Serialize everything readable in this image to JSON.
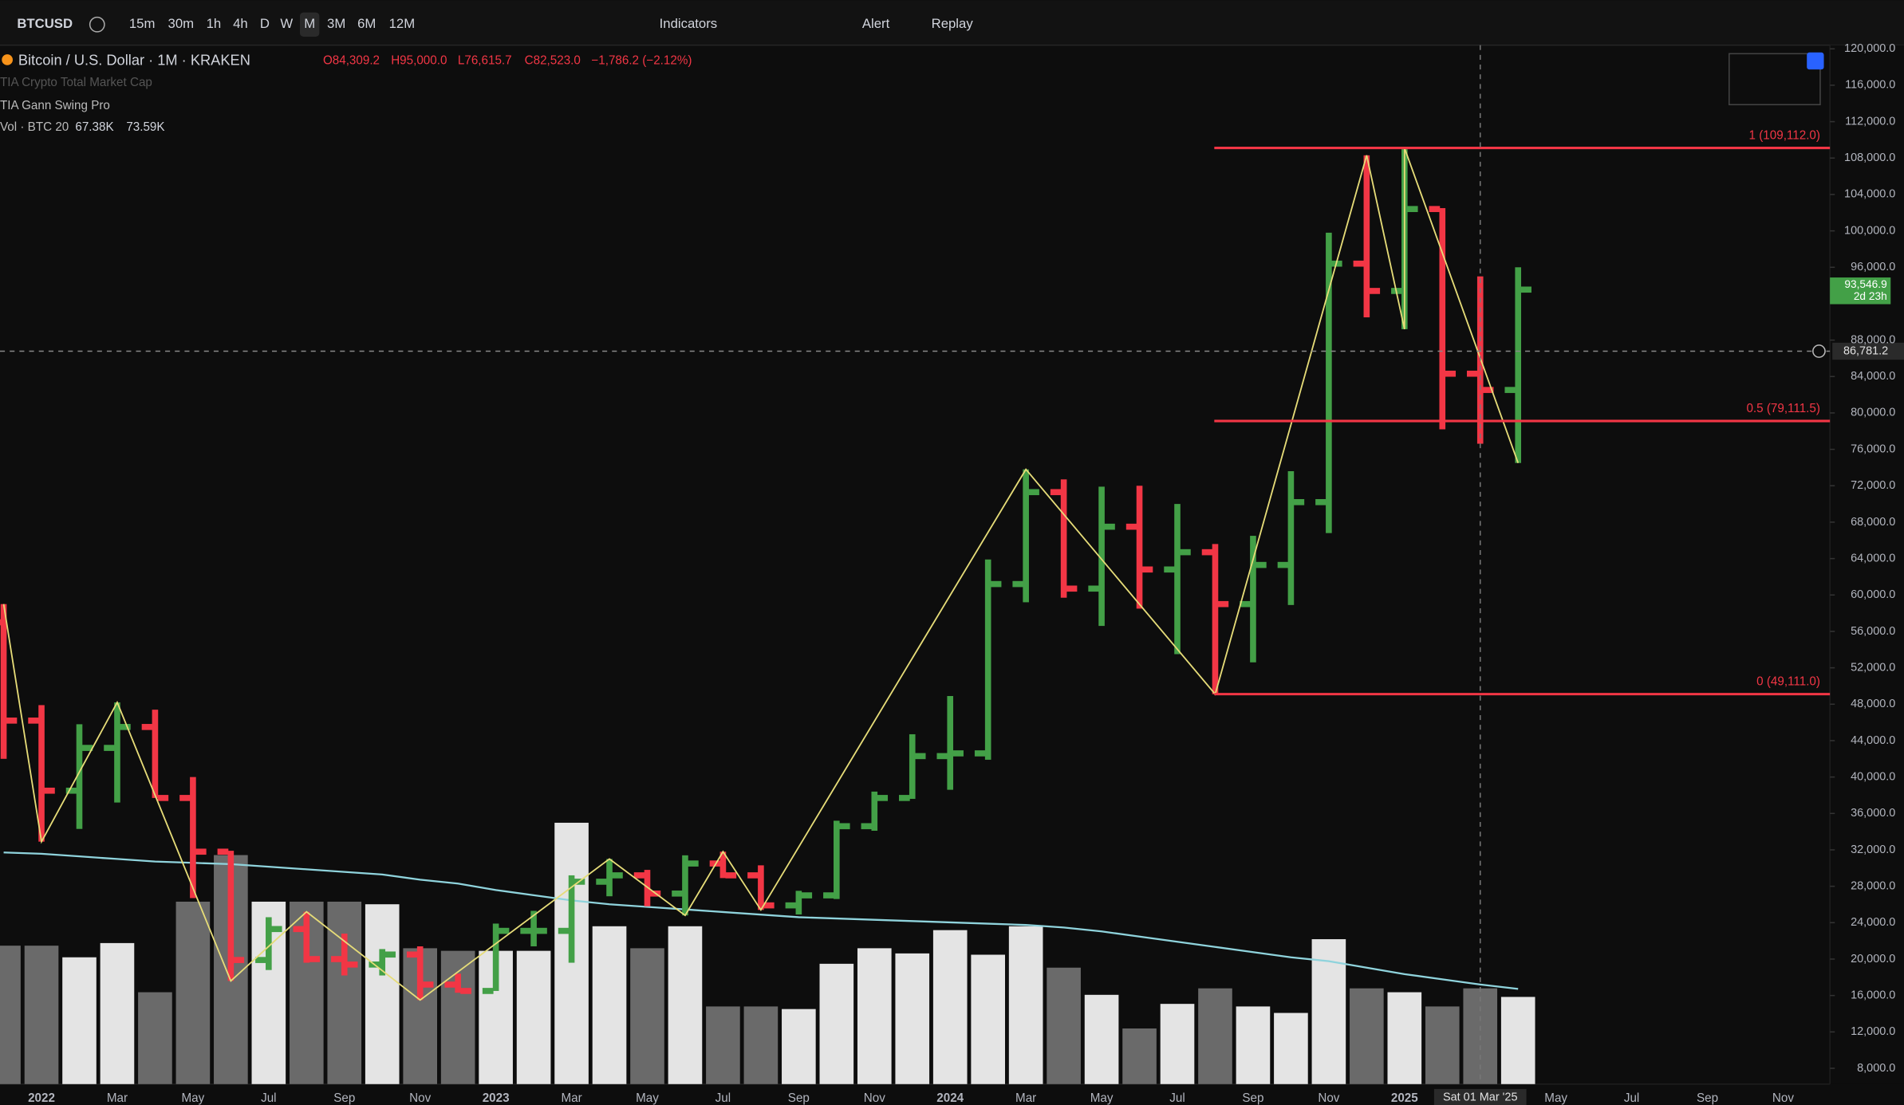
{
  "toolbar": {
    "symbol": "BTCUSD",
    "intervals": [
      "15m",
      "30m",
      "1h",
      "4h",
      "D",
      "W",
      "M",
      "3M",
      "6M",
      "12M"
    ],
    "active_interval": 6,
    "indicators": "Indicators",
    "alert": "Alert",
    "replay": "Replay"
  },
  "legend": {
    "title": "Bitcoin / U.S. Dollar · 1M · KRAKEN",
    "ohlc": [
      "O84,309.2",
      "H95,000.0",
      "L76,615.7",
      "C82,523.0",
      "−1,786.2 (−2.12%)"
    ],
    "indicator1": "TIA Crypto Total Market Cap",
    "indicator2": "TIA Gann Swing Pro",
    "volume_name": "Vol · BTC 20",
    "volume_values": [
      "67.38K",
      "73.59K"
    ]
  },
  "chart_data": {
    "type": "ohlc",
    "categories": [
      null,
      "2022",
      null,
      "Mar",
      null,
      "May",
      null,
      "Jul",
      null,
      "Sep",
      null,
      "Nov",
      null,
      "2023",
      null,
      "Mar",
      null,
      "May",
      null,
      "Jul",
      null,
      "Sep",
      null,
      "Nov",
      null,
      "2024",
      null,
      "Mar",
      null,
      "May",
      null,
      "Jul",
      null,
      "Sep",
      null,
      "Nov",
      null,
      "2025",
      null,
      null,
      null,
      "May",
      null,
      "Jul",
      null,
      "Sep",
      null,
      "Nov"
    ],
    "open": [
      57000,
      46200,
      38500,
      43200,
      45500,
      37700,
      31800,
      19900,
      23300,
      20000,
      19400,
      20500,
      17200,
      16500,
      23100,
      23100,
      28500,
      29200,
      27200,
      30500,
      29200,
      25900,
      27000,
      34600,
      37700,
      42300,
      42600,
      61200,
      71300,
      60700,
      67500,
      62800,
      64700,
      59000,
      63300,
      70200,
      96400,
      93400,
      102400,
      84309.2,
      82523.0,
      null,
      null,
      null,
      null,
      null,
      null,
      null
    ],
    "high": [
      59000,
      47900,
      45800,
      48200,
      47400,
      40000,
      31900,
      24600,
      25200,
      22800,
      21100,
      21400,
      18400,
      23900,
      25300,
      29200,
      31000,
      29800,
      31400,
      31800,
      30300,
      27500,
      35200,
      38400,
      44700,
      48900,
      63900,
      73800,
      72700,
      71900,
      72000,
      70000,
      65600,
      66500,
      73600,
      99800,
      108300,
      109100,
      102500,
      95000.0,
      96000,
      null,
      null,
      null,
      null,
      null,
      null,
      null
    ],
    "low": [
      42000,
      32900,
      34300,
      37200,
      37700,
      26700,
      17600,
      18800,
      19600,
      18200,
      18200,
      15500,
      16300,
      16500,
      21400,
      19600,
      26900,
      25800,
      24800,
      28900,
      25400,
      24900,
      26600,
      34100,
      37600,
      38600,
      41900,
      59200,
      59700,
      56600,
      58500,
      53500,
      49100,
      52600,
      58900,
      66800,
      90500,
      89200,
      78200,
      76615.7,
      74500,
      null,
      null,
      null,
      null,
      null,
      null,
      null
    ],
    "close": [
      46200,
      38500,
      43200,
      45500,
      37700,
      31800,
      19900,
      23300,
      20000,
      19400,
      20500,
      17200,
      16500,
      23100,
      23100,
      28500,
      29200,
      27200,
      30500,
      29200,
      25900,
      27000,
      34600,
      37700,
      42300,
      42600,
      61200,
      71300,
      60700,
      67500,
      62800,
      64700,
      59000,
      63300,
      70200,
      96400,
      93400,
      102400,
      84309.2,
      82523.0,
      93546.9,
      null,
      null,
      null,
      null,
      null,
      null,
      null
    ],
    "up_color": "#43a047",
    "down_color": "#f23645",
    "volume": {
      "values": [
        107,
        107,
        98,
        109,
        71,
        141,
        177,
        141,
        141,
        141,
        139,
        105,
        103,
        103,
        103,
        202,
        122,
        105,
        122,
        60,
        60,
        58,
        93,
        105,
        101,
        119,
        100,
        122,
        90,
        69,
        43,
        62,
        74,
        60,
        55,
        112,
        74,
        71,
        60,
        74,
        67.38,
        null,
        null,
        null,
        null,
        null,
        null,
        null
      ],
      "ma": {
        "values": [
          179,
          178,
          176,
          174,
          172,
          171,
          170,
          168,
          166,
          164,
          162,
          158,
          155,
          150,
          146,
          142,
          139,
          137,
          135,
          133,
          131,
          129,
          128,
          127,
          126,
          125,
          124,
          123,
          121,
          118,
          114,
          110,
          106,
          102,
          98,
          95,
          90,
          85,
          81,
          77,
          73.59,
          null,
          null,
          null,
          null,
          null,
          null,
          null
        ],
        "color": "#8fd3dc"
      },
      "up_color": "#e4e4e4",
      "down_color": "#6a6a6a"
    },
    "y2lim": [
      0,
      803
    ],
    "ylim": [
      6267,
      120400
    ],
    "yticks": [
      {
        "value": 120000,
        "label": "120,000.0"
      },
      {
        "value": 116000,
        "label": "116,000.0"
      },
      {
        "value": 112000,
        "label": "112,000.0"
      },
      {
        "value": 108000,
        "label": "108,000.0"
      },
      {
        "value": 104000,
        "label": "104,000.0"
      },
      {
        "value": 100000,
        "label": "100,000.0"
      },
      {
        "value": 96000,
        "label": "96,000.0"
      },
      {
        "value": 88000,
        "label": "88,000.0"
      },
      {
        "value": 84000,
        "label": "84,000.0"
      },
      {
        "value": 80000,
        "label": "80,000.0"
      },
      {
        "value": 76000,
        "label": "76,000.0"
      },
      {
        "value": 72000,
        "label": "72,000.0"
      },
      {
        "value": 68000,
        "label": "68,000.0"
      },
      {
        "value": 64000,
        "label": "64,000.0"
      },
      {
        "value": 60000,
        "label": "60,000.0"
      },
      {
        "value": 56000,
        "label": "56,000.0"
      },
      {
        "value": 52000,
        "label": "52,000.0"
      },
      {
        "value": 48000,
        "label": "48,000.0"
      },
      {
        "value": 44000,
        "label": "44,000.0"
      },
      {
        "value": 40000,
        "label": "40,000.0"
      },
      {
        "value": 36000,
        "label": "36,000.0"
      },
      {
        "value": 32000,
        "label": "32,000.0"
      },
      {
        "value": 28000,
        "label": "28,000.0"
      },
      {
        "value": 24000,
        "label": "24,000.0"
      },
      {
        "value": 20000,
        "label": "20,000.0"
      },
      {
        "value": 16000,
        "label": "16,000.0"
      },
      {
        "value": 12000,
        "label": "12,000.0"
      },
      {
        "value": 8000,
        "label": "8,000.0"
      }
    ],
    "swing": {
      "color": "#e6dc78",
      "x": [
        0,
        1,
        3,
        6,
        8,
        11,
        16,
        18,
        19,
        20,
        27,
        32,
        36,
        37,
        37,
        40
      ],
      "values": [
        59000,
        32900,
        48200,
        17600,
        25200,
        15500,
        31000,
        24800,
        31800,
        25400,
        73800,
        49100,
        108300,
        89200,
        109100,
        74500
      ]
    },
    "fib": {
      "color": "#f23645",
      "levels": [
        {
          "value": 109112.0,
          "label": "1 (109,112.0)"
        },
        {
          "value": 79111.5,
          "label": "0.5 (79,111.5)"
        },
        {
          "value": 49111.0,
          "label": "0 (49,111.0)"
        }
      ]
    },
    "crosshair": {
      "price": {
        "value": 86781.2,
        "label": "86,781.2"
      },
      "x": 39,
      "time_label": "Sat 01 Mar '25"
    },
    "last_price": {
      "value": 93546.9,
      "label": "93,546.9",
      "countdown": "2d 23h"
    }
  }
}
